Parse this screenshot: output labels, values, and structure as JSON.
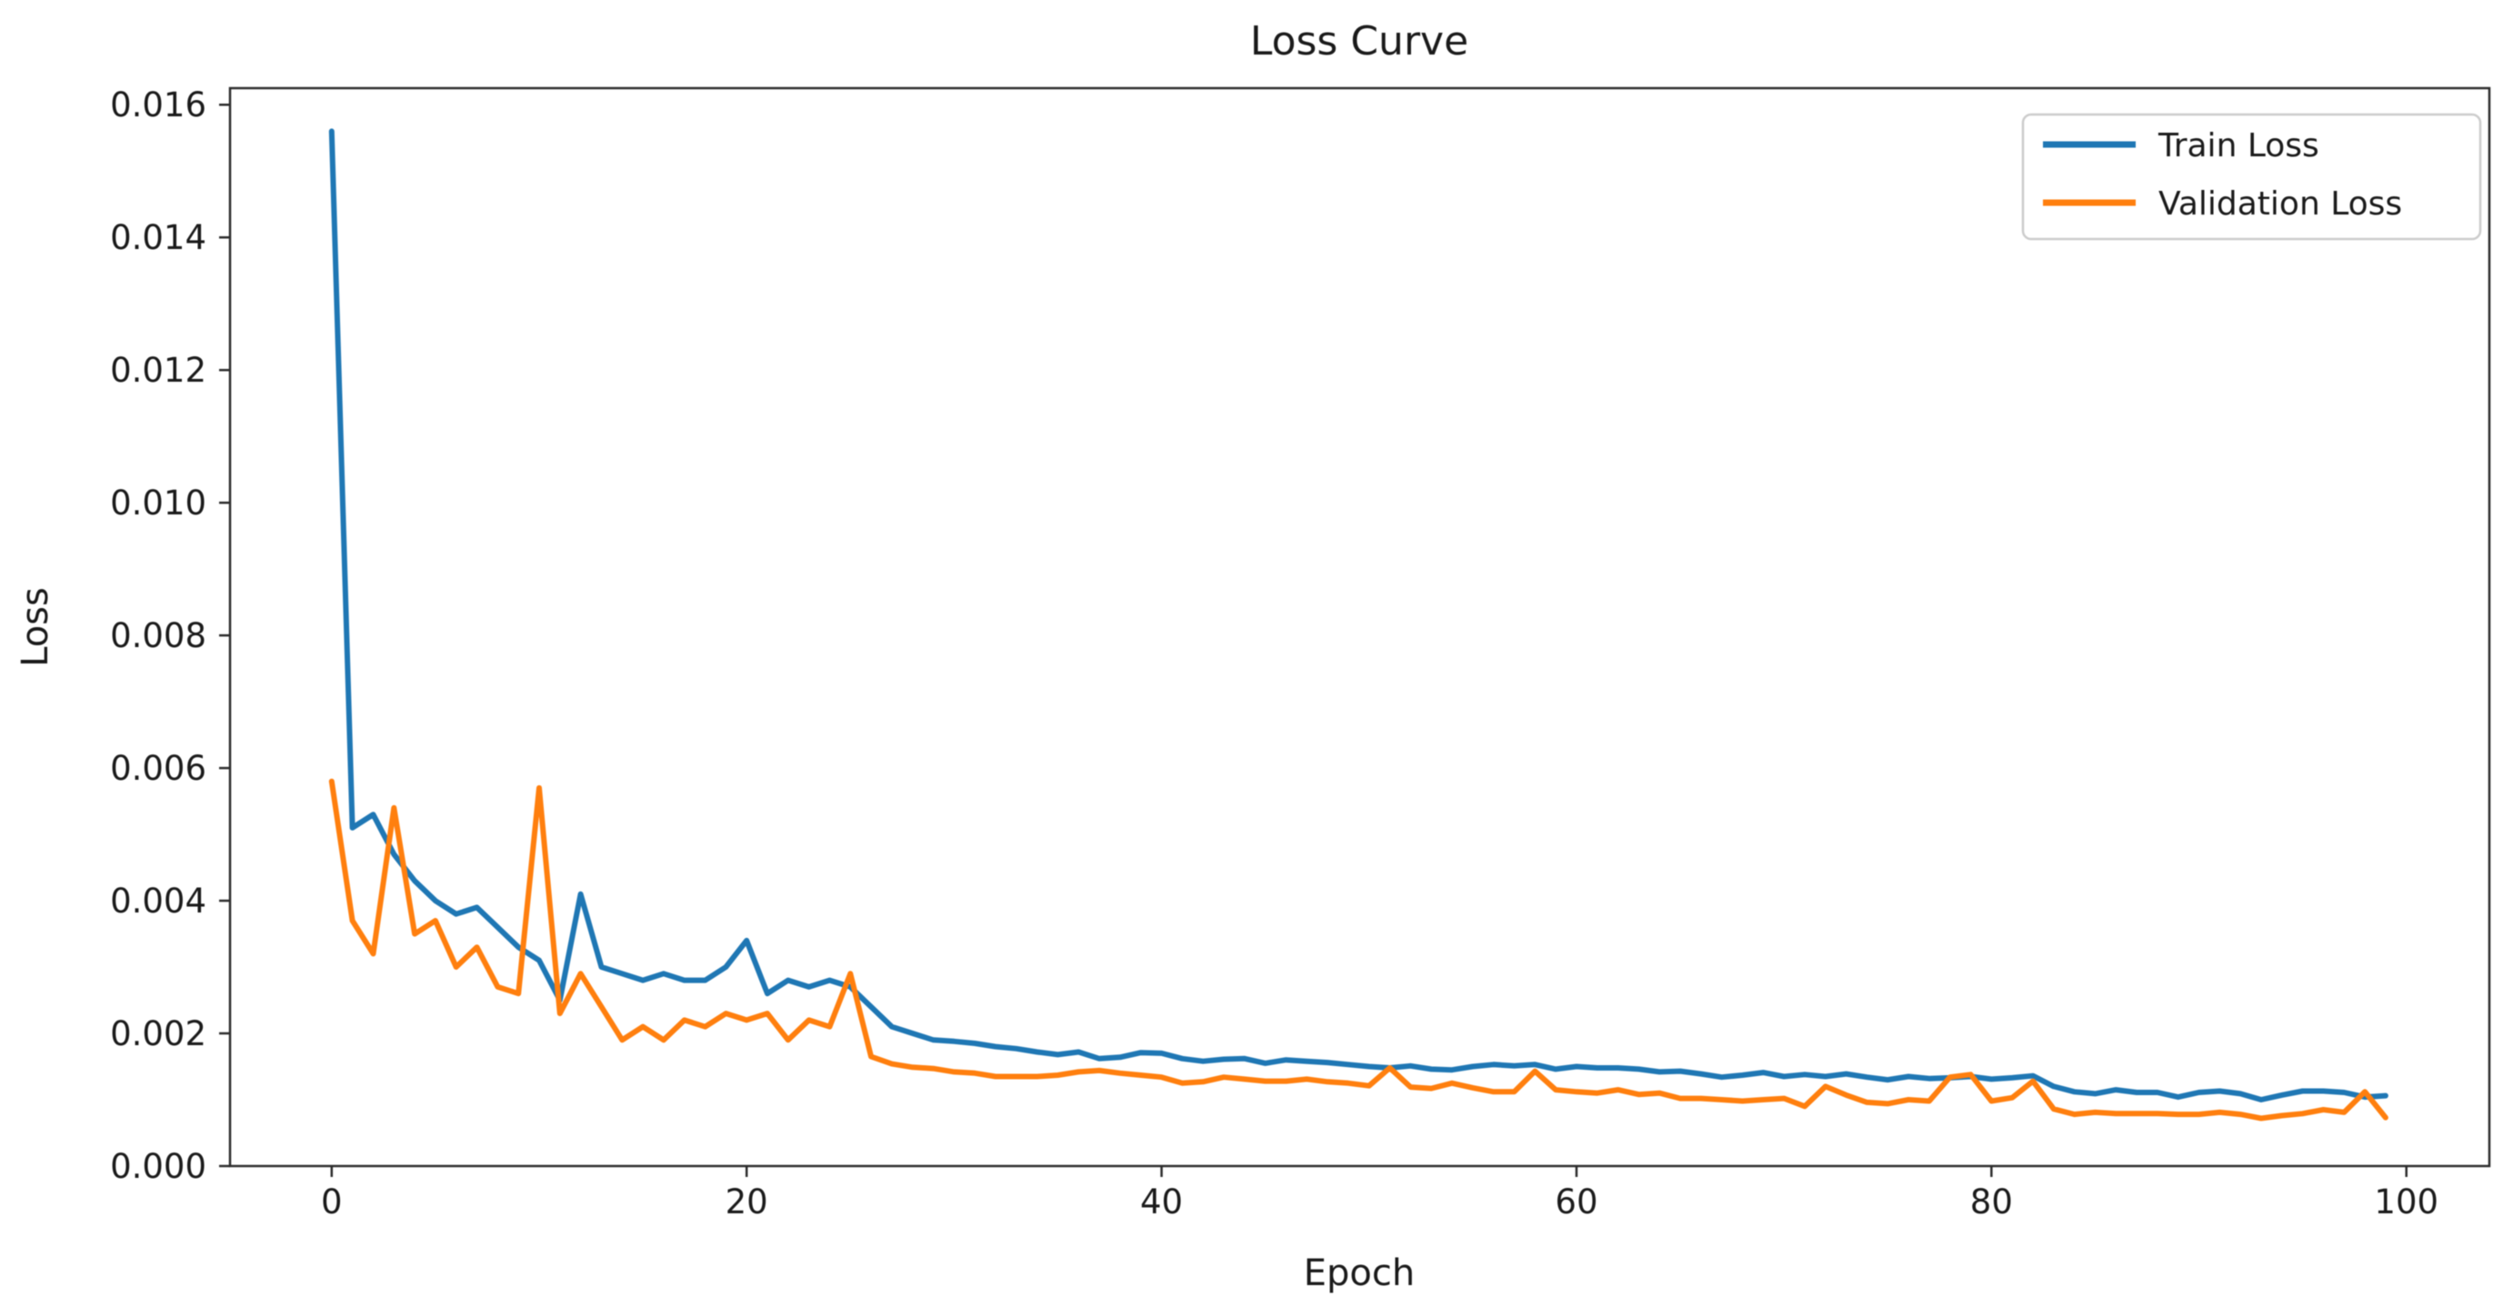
{
  "chart_data": {
    "type": "line",
    "title": "Loss Curve",
    "xlabel": "Epoch",
    "ylabel": "Loss",
    "xlim": [
      -4.9,
      104.0
    ],
    "ylim": [
      0,
      0.01625
    ],
    "grid": false,
    "legend_position": "upper right",
    "x_start": 0,
    "x_step": 1,
    "x_ticks": [
      {
        "value": 0,
        "label": "0"
      },
      {
        "value": 20,
        "label": "20"
      },
      {
        "value": 40,
        "label": "40"
      },
      {
        "value": 60,
        "label": "60"
      },
      {
        "value": 80,
        "label": "80"
      },
      {
        "value": 100,
        "label": "100"
      }
    ],
    "y_ticks": [
      {
        "value": 0.0,
        "label": "0.000"
      },
      {
        "value": 0.002,
        "label": "0.002"
      },
      {
        "value": 0.004,
        "label": "0.004"
      },
      {
        "value": 0.006,
        "label": "0.006"
      },
      {
        "value": 0.008,
        "label": "0.008"
      },
      {
        "value": 0.01,
        "label": "0.010"
      },
      {
        "value": 0.012,
        "label": "0.012"
      },
      {
        "value": 0.014,
        "label": "0.014"
      },
      {
        "value": 0.016,
        "label": "0.016"
      }
    ],
    "series": [
      {
        "name": "Train Loss",
        "color": "#1f77b4",
        "values": [
          0.0156,
          0.0051,
          0.0053,
          0.0047,
          0.0043,
          0.004,
          0.0038,
          0.0039,
          0.0036,
          0.0033,
          0.0031,
          0.0025,
          0.0041,
          0.003,
          0.0029,
          0.0028,
          0.0029,
          0.0028,
          0.0028,
          0.003,
          0.0034,
          0.0026,
          0.0028,
          0.0027,
          0.0028,
          0.0027,
          0.0024,
          0.0021,
          0.002,
          0.0019,
          0.00188,
          0.00185,
          0.0018,
          0.00177,
          0.00172,
          0.00168,
          0.00172,
          0.00162,
          0.00164,
          0.00171,
          0.0017,
          0.00162,
          0.00158,
          0.00161,
          0.00162,
          0.00155,
          0.0016,
          0.00158,
          0.00156,
          0.00153,
          0.0015,
          0.00148,
          0.00151,
          0.00146,
          0.00145,
          0.0015,
          0.00153,
          0.00151,
          0.00153,
          0.00146,
          0.0015,
          0.00148,
          0.00148,
          0.00146,
          0.00142,
          0.00143,
          0.00139,
          0.00134,
          0.00137,
          0.00141,
          0.00135,
          0.00138,
          0.00135,
          0.00139,
          0.00134,
          0.0013,
          0.00135,
          0.00132,
          0.00133,
          0.00135,
          0.00131,
          0.00133,
          0.00136,
          0.0012,
          0.00112,
          0.00109,
          0.00115,
          0.00111,
          0.00111,
          0.00104,
          0.00111,
          0.00113,
          0.00109,
          0.001,
          0.00107,
          0.00113,
          0.00113,
          0.00111,
          0.00104,
          0.00106
        ]
      },
      {
        "name": "Validation Loss",
        "color": "#ff7f0e",
        "values": [
          0.0058,
          0.0037,
          0.0032,
          0.0054,
          0.0035,
          0.0037,
          0.003,
          0.0033,
          0.0027,
          0.0026,
          0.0057,
          0.0023,
          0.0029,
          0.0024,
          0.0019,
          0.0021,
          0.0019,
          0.0022,
          0.0021,
          0.0023,
          0.0022,
          0.0023,
          0.0019,
          0.0022,
          0.0021,
          0.0029,
          0.00165,
          0.00154,
          0.00149,
          0.00147,
          0.00142,
          0.0014,
          0.00135,
          0.00135,
          0.00135,
          0.00137,
          0.00142,
          0.00144,
          0.0014,
          0.00137,
          0.00134,
          0.00125,
          0.00127,
          0.00134,
          0.00131,
          0.00128,
          0.00128,
          0.00131,
          0.00127,
          0.00125,
          0.00121,
          0.00148,
          0.00119,
          0.00117,
          0.00125,
          0.00118,
          0.00112,
          0.00112,
          0.00143,
          0.00115,
          0.00112,
          0.0011,
          0.00115,
          0.00108,
          0.0011,
          0.00102,
          0.00102,
          0.001,
          0.00098,
          0.001,
          0.00102,
          0.0009,
          0.0012,
          0.00107,
          0.00096,
          0.00094,
          0.001,
          0.00098,
          0.00134,
          0.00138,
          0.00098,
          0.00103,
          0.00128,
          0.00086,
          0.00078,
          0.00081,
          0.00079,
          0.00079,
          0.00079,
          0.00078,
          0.00078,
          0.00081,
          0.00078,
          0.00072,
          0.00076,
          0.00079,
          0.00085,
          0.00081,
          0.00112,
          0.00073
        ]
      }
    ]
  },
  "legend": {
    "items": [
      {
        "label": "Train Loss"
      },
      {
        "label": "Validation Loss"
      }
    ]
  },
  "style": {
    "spine_color": "#2b2b2b",
    "text_color": "#1a1a1a",
    "legend_border_color": "#cccccc"
  }
}
